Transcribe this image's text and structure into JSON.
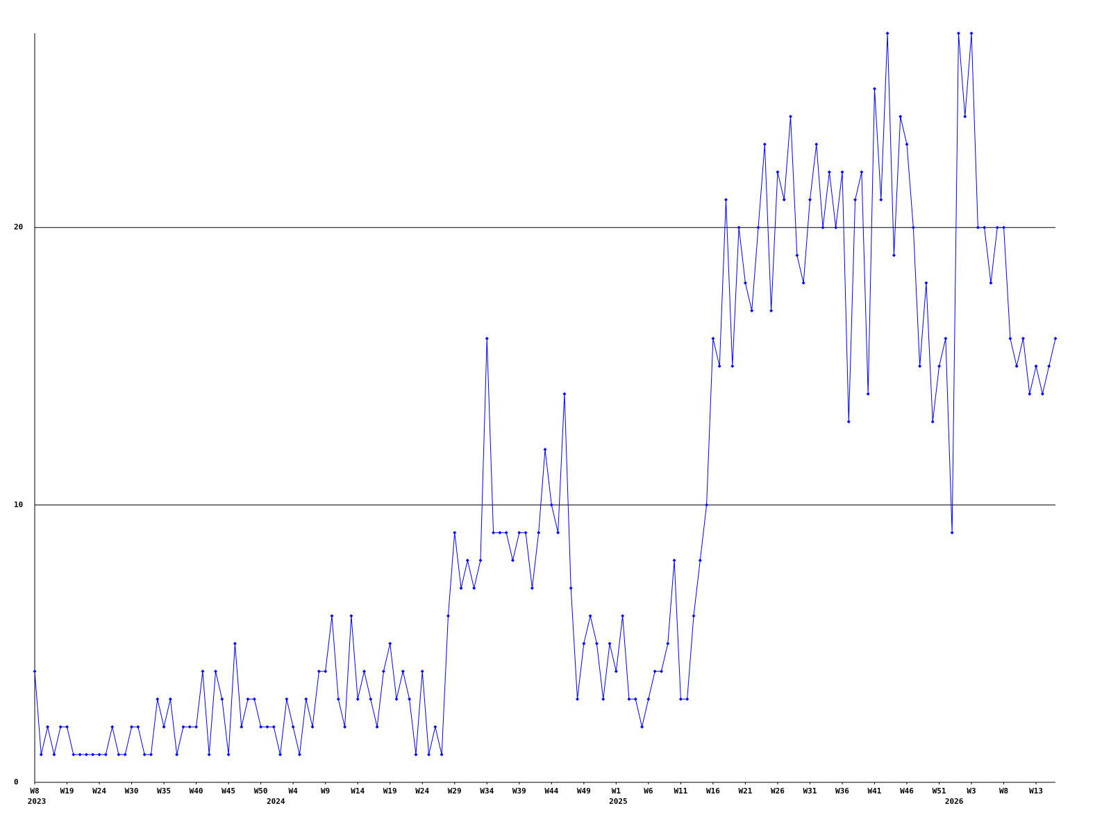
{
  "chart_data": {
    "type": "line",
    "categories": [
      "W8",
      null,
      null,
      null,
      null,
      "W19",
      null,
      null,
      null,
      null,
      "W24",
      null,
      null,
      null,
      null,
      "W30",
      null,
      null,
      null,
      null,
      "W35",
      null,
      null,
      null,
      null,
      "W40",
      null,
      null,
      null,
      null,
      "W45",
      null,
      null,
      null,
      null,
      "W50",
      null,
      null,
      null,
      null,
      "W4",
      null,
      null,
      null,
      null,
      "W9",
      null,
      null,
      null,
      null,
      "W14",
      null,
      null,
      null,
      null,
      "W19",
      null,
      null,
      null,
      null,
      "W24",
      null,
      null,
      null,
      null,
      "W29",
      null,
      null,
      null,
      null,
      "W34",
      null,
      null,
      null,
      null,
      "W39",
      null,
      null,
      null,
      null,
      "W44",
      null,
      null,
      null,
      null,
      "W49",
      null,
      null,
      null,
      null,
      "W1",
      null,
      null,
      null,
      null,
      "W6",
      null,
      null,
      null,
      null,
      "W11",
      null,
      null,
      null,
      null,
      "W16",
      null,
      null,
      null,
      null,
      "W21",
      null,
      null,
      null,
      null,
      "W26",
      null,
      null,
      null,
      null,
      "W31",
      null,
      null,
      null,
      null,
      "W36",
      null,
      null,
      null,
      null,
      "W41",
      null,
      null,
      null,
      null,
      "W46",
      null,
      null,
      null,
      null,
      "W51",
      null,
      null,
      null,
      null,
      "W3",
      null,
      null,
      null,
      null,
      "W8",
      null,
      null,
      null,
      null,
      "W13",
      null,
      null,
      null
    ],
    "year_labels": [
      "2023",
      null,
      null,
      null,
      null,
      null,
      null,
      null,
      null,
      null,
      null,
      null,
      null,
      null,
      null,
      null,
      null,
      null,
      null,
      null,
      null,
      null,
      null,
      null,
      null,
      null,
      null,
      null,
      null,
      null,
      null,
      null,
      null,
      null,
      null,
      null,
      null,
      "2024",
      null,
      null,
      null,
      null,
      null,
      null,
      null,
      null,
      null,
      null,
      null,
      null,
      null,
      null,
      null,
      null,
      null,
      null,
      null,
      null,
      null,
      null,
      null,
      null,
      null,
      null,
      null,
      null,
      null,
      null,
      null,
      null,
      null,
      null,
      null,
      null,
      null,
      null,
      null,
      null,
      null,
      null,
      null,
      null,
      null,
      null,
      null,
      null,
      null,
      null,
      null,
      null,
      "2025",
      null,
      null,
      null,
      null,
      null,
      null,
      null,
      null,
      null,
      null,
      null,
      null,
      null,
      null,
      null,
      null,
      null,
      null,
      null,
      null,
      null,
      null,
      null,
      null,
      null,
      null,
      null,
      null,
      null,
      null,
      null,
      null,
      null,
      null,
      null,
      null,
      null,
      null,
      null,
      null,
      null,
      null,
      null,
      null,
      null,
      null,
      null,
      null,
      null,
      null,
      null,
      "2026",
      null,
      null,
      null,
      null,
      null,
      null,
      null,
      null,
      null,
      null,
      null,
      null,
      null,
      null,
      null,
      null
    ],
    "values": [
      4,
      1,
      2,
      1,
      2,
      2,
      1,
      1,
      1,
      1,
      1,
      1,
      2,
      1,
      1,
      2,
      2,
      1,
      1,
      3,
      2,
      3,
      1,
      2,
      2,
      2,
      4,
      1,
      4,
      3,
      1,
      5,
      2,
      3,
      3,
      2,
      2,
      2,
      1,
      3,
      2,
      1,
      3,
      2,
      4,
      4,
      6,
      3,
      2,
      6,
      3,
      4,
      3,
      2,
      4,
      5,
      3,
      4,
      3,
      1,
      4,
      1,
      2,
      1,
      6,
      9,
      7,
      8,
      7,
      8,
      16,
      9,
      9,
      9,
      8,
      9,
      9,
      7,
      9,
      12,
      10,
      9,
      14,
      7,
      3,
      5,
      6,
      5,
      3,
      5,
      4,
      6,
      3,
      3,
      2,
      3,
      4,
      4,
      5,
      8,
      3,
      3,
      6,
      8,
      10,
      16,
      15,
      21,
      15,
      20,
      18,
      17,
      20,
      23,
      17,
      22,
      21,
      24,
      19,
      18,
      21,
      23,
      20,
      22,
      20,
      22,
      13,
      21,
      22,
      14,
      25,
      21,
      27,
      19,
      24,
      23,
      20,
      15,
      18,
      13,
      15,
      16,
      9,
      27,
      24,
      27,
      20,
      20,
      18,
      20,
      20,
      16,
      15,
      16,
      14,
      15,
      14,
      15,
      16
    ],
    "color": "#0000ff",
    "ylim": [
      0,
      27
    ],
    "yticks": [
      0,
      10,
      20
    ],
    "grid": true
  }
}
